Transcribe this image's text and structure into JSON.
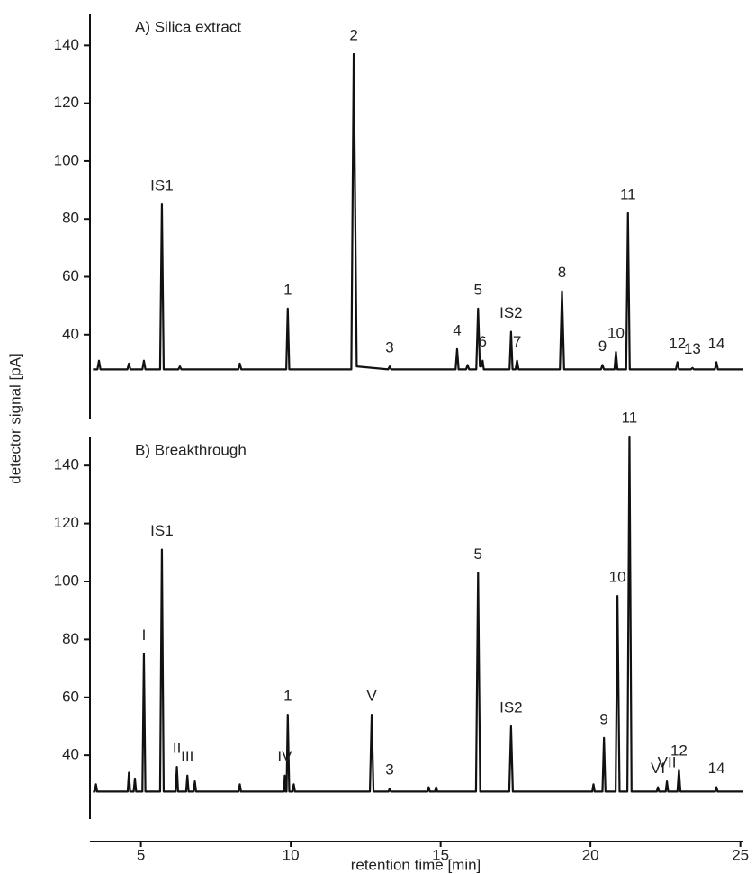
{
  "chart_data": [
    {
      "type": "line",
      "title": "A) Silica extract",
      "ylabel": "detector signal [pA]",
      "color": "#111",
      "xlim": [
        3.3,
        25.1
      ],
      "ylim": [
        11,
        151
      ],
      "yticks": [
        40,
        60,
        80,
        100,
        120,
        140
      ],
      "x": [
        3.4,
        3.55,
        3.6,
        3.65,
        4.55,
        4.6,
        4.65,
        5.05,
        5.1,
        5.15,
        5.64,
        5.7,
        5.76,
        6.25,
        6.3,
        6.35,
        8.25,
        8.3,
        8.35,
        9.85,
        9.9,
        9.95,
        12.02,
        12.1,
        12.2,
        13.25,
        13.3,
        13.35,
        15.5,
        15.55,
        15.6,
        15.85,
        15.9,
        15.95,
        16.19,
        16.25,
        16.31,
        16.36,
        16.4,
        16.44,
        17.3,
        17.35,
        17.4,
        17.5,
        17.55,
        17.6,
        18.98,
        19.05,
        19.12,
        20.35,
        20.4,
        20.45,
        20.8,
        20.85,
        20.9,
        21.19,
        21.25,
        21.31,
        22.85,
        22.9,
        22.95,
        23.35,
        23.4,
        23.45,
        24.15,
        24.2,
        24.25,
        25.1
      ],
      "values": [
        28,
        28,
        31,
        28,
        28,
        30,
        28,
        28,
        31,
        28,
        28,
        85,
        28,
        28,
        29,
        28,
        28,
        30,
        28,
        28,
        49,
        28,
        28,
        137,
        29,
        28,
        29,
        28,
        28,
        35,
        28,
        28,
        29.5,
        28,
        28,
        49,
        29,
        29,
        31,
        28,
        28,
        41,
        28,
        28,
        31,
        28,
        28,
        55,
        28,
        28,
        29.5,
        28,
        28,
        34,
        28,
        28,
        82,
        28,
        28,
        30.5,
        28,
        28,
        28.5,
        28,
        28,
        30.5,
        28,
        28
      ],
      "annotations": [
        {
          "text": "IS1",
          "x": 5.7,
          "y": 85
        },
        {
          "text": "1",
          "x": 9.9,
          "y": 49
        },
        {
          "text": "2",
          "x": 12.1,
          "y": 137
        },
        {
          "text": "3",
          "x": 13.3,
          "y": 29
        },
        {
          "text": "4",
          "x": 15.55,
          "y": 35
        },
        {
          "text": "5",
          "x": 16.25,
          "y": 49
        },
        {
          "text": "6",
          "x": 16.4,
          "y": 31
        },
        {
          "text": "IS2",
          "x": 17.35,
          "y": 41
        },
        {
          "text": "7",
          "x": 17.55,
          "y": 31
        },
        {
          "text": "8",
          "x": 19.05,
          "y": 55
        },
        {
          "text": "9",
          "x": 20.4,
          "y": 29.5
        },
        {
          "text": "10",
          "x": 20.85,
          "y": 34
        },
        {
          "text": "11",
          "x": 21.25,
          "y": 82
        },
        {
          "text": "12",
          "x": 22.9,
          "y": 30.5
        },
        {
          "text": "13",
          "x": 23.4,
          "y": 28.5
        },
        {
          "text": "14",
          "x": 24.2,
          "y": 30.5
        }
      ]
    },
    {
      "type": "line",
      "title": "B) Breakthrough",
      "xlabel": "retention time [min]",
      "color": "#111",
      "xlim": [
        3.3,
        25.1
      ],
      "ylim": [
        18,
        150
      ],
      "yticks": [
        40,
        60,
        80,
        100,
        120,
        140
      ],
      "xticks": [
        5,
        10,
        15,
        20,
        25
      ],
      "x": [
        3.4,
        3.46,
        3.5,
        3.54,
        4.56,
        4.6,
        4.64,
        4.76,
        4.8,
        4.84,
        5.05,
        5.1,
        5.15,
        5.64,
        5.7,
        5.76,
        6.16,
        6.2,
        6.24,
        6.51,
        6.55,
        6.59,
        6.76,
        6.8,
        6.84,
        8.26,
        8.3,
        8.34,
        9.77,
        9.8,
        9.83,
        9.86,
        9.9,
        9.95,
        10.06,
        10.1,
        10.14,
        12.64,
        12.7,
        12.76,
        13.26,
        13.3,
        13.34,
        14.56,
        14.6,
        14.64,
        14.81,
        14.85,
        14.89,
        16.18,
        16.25,
        16.32,
        17.29,
        17.35,
        17.41,
        20.06,
        20.1,
        20.14,
        20.4,
        20.45,
        20.5,
        20.84,
        20.9,
        20.97,
        21.23,
        21.3,
        21.37,
        22.21,
        22.25,
        22.29,
        22.51,
        22.55,
        22.59,
        22.9,
        22.95,
        23.0,
        24.16,
        24.2,
        24.24,
        25.1
      ],
      "values": [
        27.5,
        27.5,
        30,
        27.5,
        27.5,
        34,
        27.5,
        27.5,
        32,
        27.5,
        27.5,
        75,
        27.5,
        27.5,
        111,
        27.5,
        27.5,
        36,
        27.5,
        27.5,
        33,
        27.5,
        27.5,
        31,
        27.5,
        27.5,
        30,
        27.5,
        27.5,
        33,
        27.5,
        27.5,
        54,
        27.5,
        27.5,
        30,
        27.5,
        27.5,
        54,
        27.5,
        27.5,
        28.5,
        27.5,
        27.5,
        29,
        27.5,
        27.5,
        29,
        27.5,
        27.5,
        103,
        27.5,
        27.5,
        50,
        27.5,
        27.5,
        30,
        27.5,
        27.5,
        46,
        27.5,
        27.5,
        95,
        27.5,
        27.5,
        150,
        27.5,
        27.5,
        29,
        27.5,
        27.5,
        31,
        27.5,
        27.5,
        35,
        27.5,
        27.5,
        29,
        27.5,
        27.5
      ],
      "annotations": [
        {
          "text": "I",
          "x": 5.1,
          "y": 75
        },
        {
          "text": "IS1",
          "x": 5.7,
          "y": 111
        },
        {
          "text": "II",
          "x": 6.2,
          "y": 36
        },
        {
          "text": "III",
          "x": 6.55,
          "y": 33
        },
        {
          "text": "IV",
          "x": 9.8,
          "y": 33
        },
        {
          "text": "1",
          "x": 9.9,
          "y": 54
        },
        {
          "text": "V",
          "x": 12.7,
          "y": 54
        },
        {
          "text": "3",
          "x": 13.3,
          "y": 28.5
        },
        {
          "text": "5",
          "x": 16.25,
          "y": 103
        },
        {
          "text": "IS2",
          "x": 17.35,
          "y": 50
        },
        {
          "text": "9",
          "x": 20.45,
          "y": 46
        },
        {
          "text": "10",
          "x": 20.9,
          "y": 95
        },
        {
          "text": "11",
          "x": 21.3,
          "y": 150
        },
        {
          "text": "VI",
          "x": 22.25,
          "y": 29
        },
        {
          "text": "VII",
          "x": 22.55,
          "y": 31
        },
        {
          "text": "12",
          "x": 22.95,
          "y": 35
        },
        {
          "text": "14",
          "x": 24.2,
          "y": 29
        }
      ]
    }
  ]
}
